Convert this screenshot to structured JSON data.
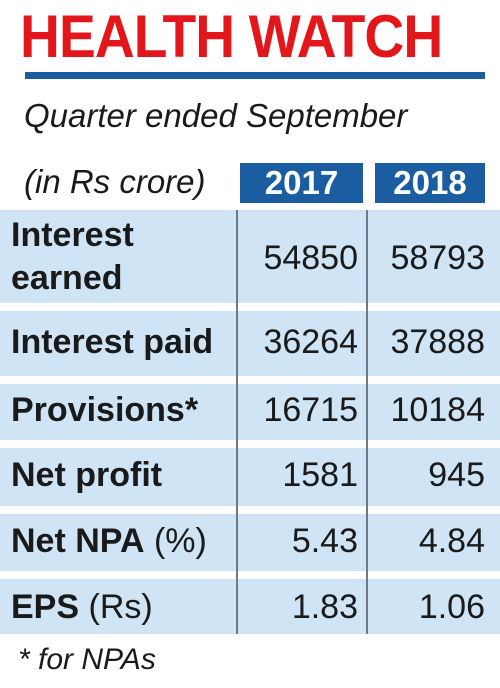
{
  "header": {
    "title": "HEALTH WATCH",
    "subtitle": "Quarter ended September",
    "unit": "(in Rs crore)"
  },
  "columns": [
    "2017",
    "2018"
  ],
  "rows": [
    {
      "label_bold": "Interest earned",
      "label_line1": "Interest",
      "label_line2": "earned",
      "label_normal": "",
      "values": [
        "54850",
        "58793"
      ]
    },
    {
      "label_bold": "Interest paid",
      "label_normal": "",
      "values": [
        "36264",
        "37888"
      ]
    },
    {
      "label_bold": "Provisions*",
      "label_normal": "",
      "values": [
        "16715",
        "10184"
      ]
    },
    {
      "label_bold": "Net profit",
      "label_normal": "",
      "values": [
        "1581",
        "945"
      ]
    },
    {
      "label_bold": "Net NPA",
      "label_normal": "(%)",
      "values": [
        "5.43",
        "4.84"
      ]
    },
    {
      "label_bold": "EPS",
      "label_normal": "(Rs)",
      "values": [
        "1.83",
        "1.06"
      ]
    }
  ],
  "footnote": "* for NPAs",
  "colors": {
    "title": "#e3171b",
    "accent": "#1a5da0",
    "table_background": "#cfe4f4"
  }
}
